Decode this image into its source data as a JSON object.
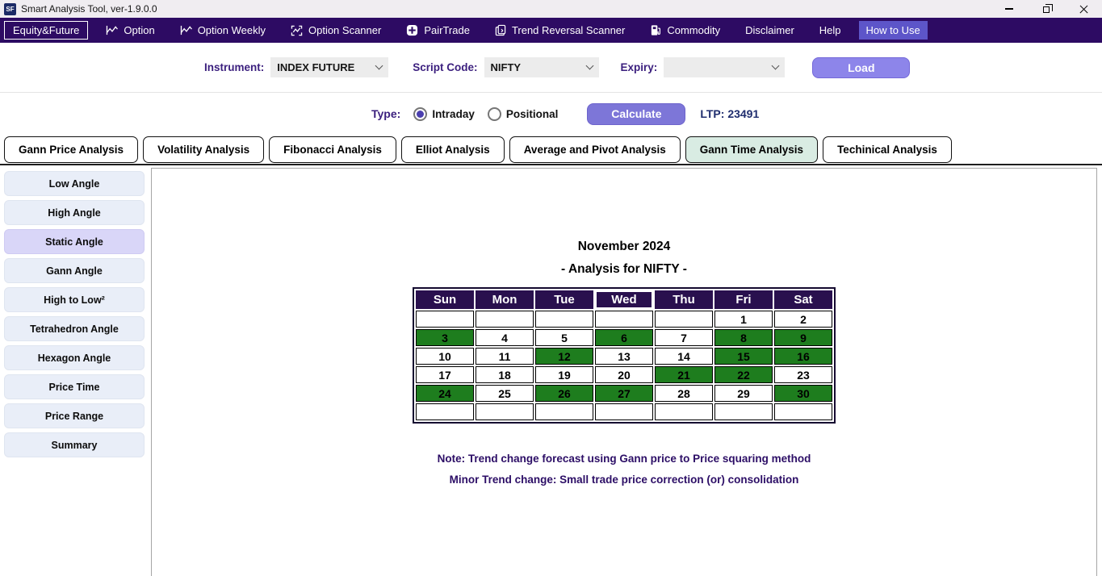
{
  "window": {
    "title": "Smart Analysis Tool, ver-1.9.0.0",
    "app_icon_text": "SF",
    "controls": [
      "minimize-icon",
      "restore-icon",
      "close-icon"
    ]
  },
  "menubar": {
    "items": [
      {
        "label": "Equity&Future",
        "icon": "",
        "style": "boxed"
      },
      {
        "label": "Option",
        "icon": "chart-line-icon",
        "style": ""
      },
      {
        "label": "Option Weekly",
        "icon": "chart-line-icon",
        "style": ""
      },
      {
        "label": "Option Scanner",
        "icon": "scanner-icon",
        "style": ""
      },
      {
        "label": "PairTrade",
        "icon": "pairtrade-icon",
        "style": ""
      },
      {
        "label": "Trend Reversal Scanner",
        "icon": "document-icon",
        "style": ""
      },
      {
        "label": "Commodity",
        "icon": "fuel-pump-icon",
        "style": ""
      },
      {
        "label": "Disclaimer",
        "icon": "",
        "style": ""
      },
      {
        "label": "Help",
        "icon": "",
        "style": ""
      },
      {
        "label": "How to Use",
        "icon": "",
        "style": "highlighted"
      }
    ]
  },
  "toolbar": {
    "instrument_label": "Instrument:",
    "instrument_value": "INDEX FUTURE",
    "script_code_label": "Script Code:",
    "script_code_value": "NIFTY",
    "expiry_label": "Expiry:",
    "expiry_value": "",
    "load_label": "Load"
  },
  "type_row": {
    "label": "Type:",
    "options": [
      {
        "label": "Intraday",
        "selected": true
      },
      {
        "label": "Positional",
        "selected": false
      }
    ],
    "calculate_label": "Calculate",
    "ltp_label": "LTP:",
    "ltp_value": "23491"
  },
  "tabs": [
    {
      "label": "Gann Price Analysis",
      "active": false
    },
    {
      "label": "Volatility Analysis",
      "active": false
    },
    {
      "label": "Fibonacci Analysis",
      "active": false
    },
    {
      "label": "Elliot Analysis",
      "active": false
    },
    {
      "label": "Average and Pivot Analysis",
      "active": false
    },
    {
      "label": "Gann Time Analysis",
      "active": true
    },
    {
      "label": "Techinical Analysis",
      "active": false
    }
  ],
  "sidebar": {
    "items": [
      {
        "label": "Low Angle",
        "active": false
      },
      {
        "label": "High Angle",
        "active": false
      },
      {
        "label": "Static Angle",
        "active": true
      },
      {
        "label": "Gann Angle",
        "active": false
      },
      {
        "label": "High to Low²",
        "active": false
      },
      {
        "label": "Tetrahedron Angle",
        "active": false
      },
      {
        "label": "Hexagon Angle",
        "active": false
      },
      {
        "label": "Price Time",
        "active": false
      },
      {
        "label": "Price Range",
        "active": false
      },
      {
        "label": "Summary",
        "active": false
      }
    ]
  },
  "calendar": {
    "title": "November 2024",
    "subtitle": "- Analysis for NIFTY -",
    "weekdays": [
      "Sun",
      "Mon",
      "Tue",
      "Wed",
      "Thu",
      "Fri",
      "Sat"
    ],
    "highlighted_weekday": "Wed",
    "weeks": [
      [
        "",
        "",
        "",
        "",
        "",
        "1",
        "2"
      ],
      [
        "3",
        "4",
        "5",
        "6",
        "7",
        "8",
        "9"
      ],
      [
        "10",
        "11",
        "12",
        "13",
        "14",
        "15",
        "16"
      ],
      [
        "17",
        "18",
        "19",
        "20",
        "21",
        "22",
        "23"
      ],
      [
        "24",
        "25",
        "26",
        "27",
        "28",
        "29",
        "30"
      ],
      [
        "",
        "",
        "",
        "",
        "",
        "",
        ""
      ]
    ],
    "green_days": [
      3,
      6,
      8,
      9,
      12,
      15,
      16,
      21,
      22,
      24,
      26,
      27,
      30
    ],
    "colors": {
      "green": "#1e7d1e",
      "header_bg": "#29104e",
      "header_text": "#ffffff"
    }
  },
  "notes": {
    "line1": "Note: Trend change forecast using Gann price to Price squaring method",
    "line2": "Minor Trend change: Small trade price correction (or) consolidation"
  }
}
